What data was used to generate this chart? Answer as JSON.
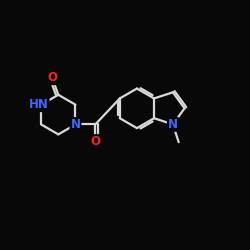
{
  "background": "#080808",
  "bond_color": "#d8d8d8",
  "atom_colors": {
    "N": "#4466ff",
    "O": "#ff2222",
    "C": "#d8d8d8"
  },
  "bond_width": 1.6,
  "font_size_atom": 8.5,
  "fig_size": [
    2.5,
    2.5
  ],
  "dpi": 100,
  "xlim": [
    0,
    12
  ],
  "ylim": [
    0,
    10
  ]
}
